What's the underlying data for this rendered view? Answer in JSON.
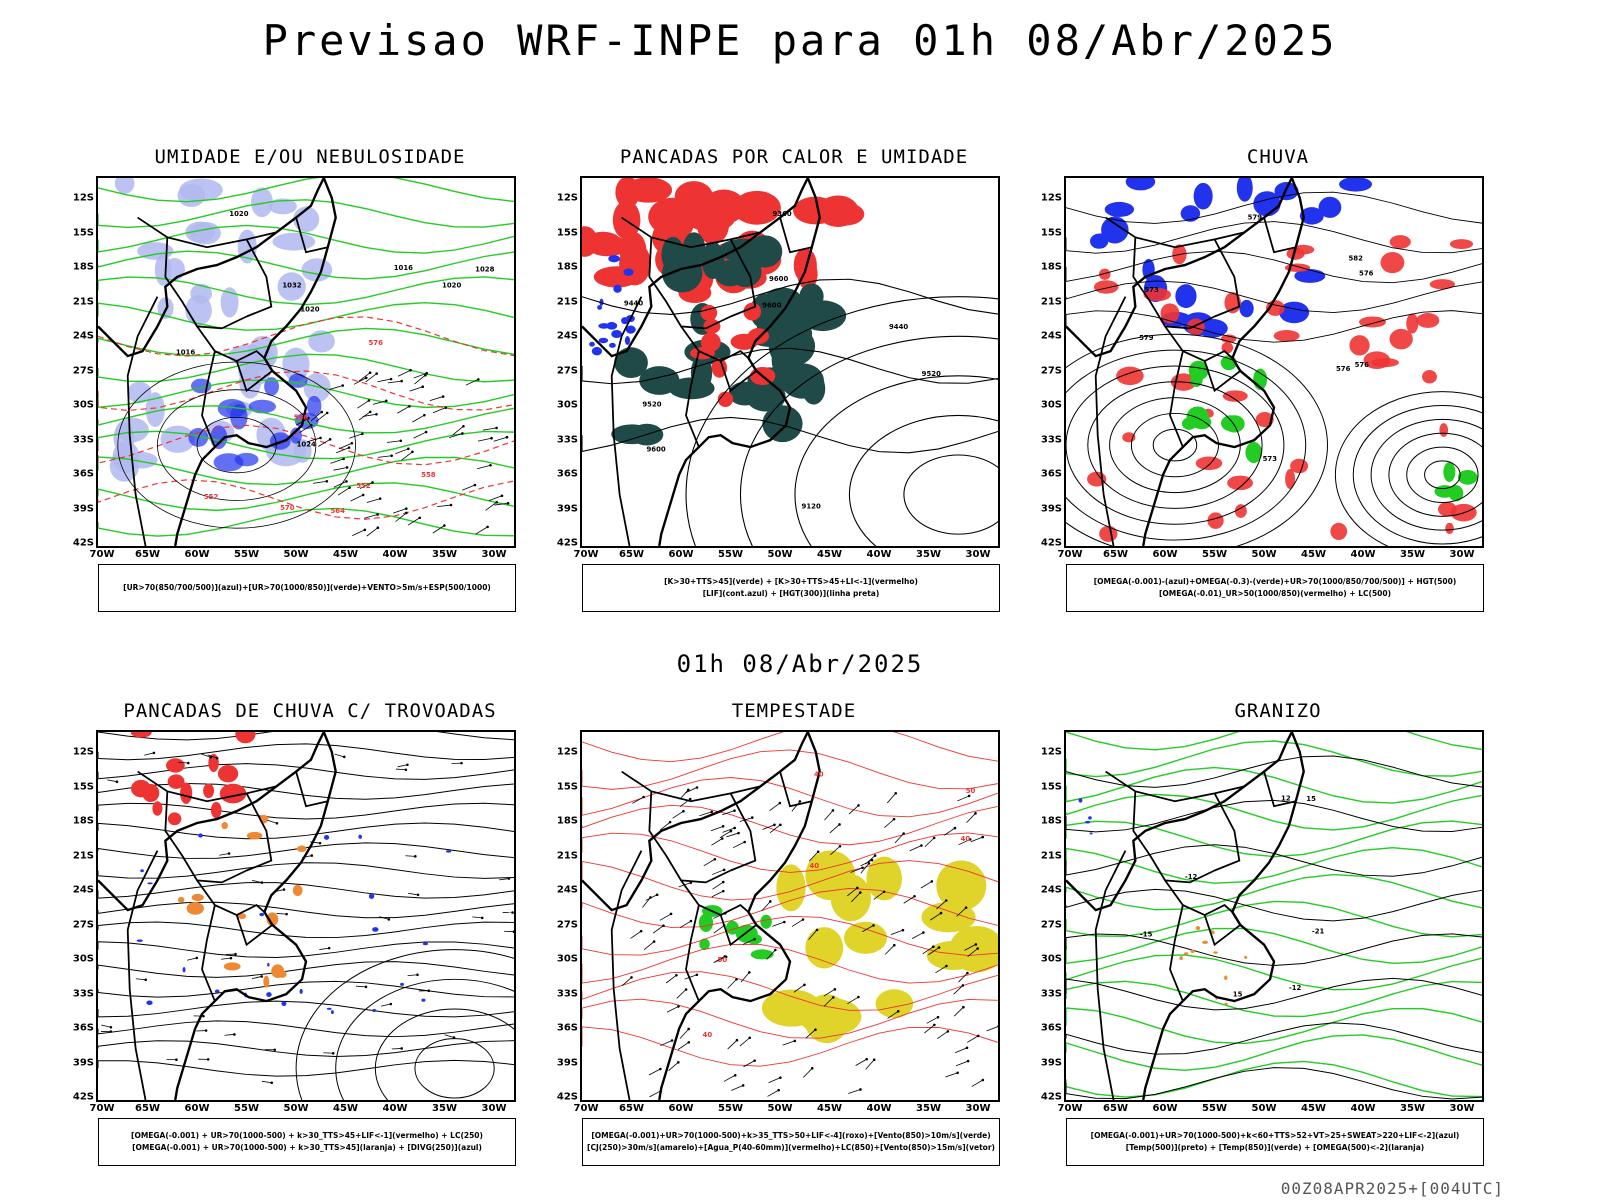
{
  "title": "Previsao WRF-INPE  para 01h 08/Abr/2025",
  "subtitle": "01h 08/Abr/2025",
  "footer": "00Z08APR2025+[004UTC]",
  "axes": {
    "lat_ticks": [
      "12S",
      "15S",
      "18S",
      "21S",
      "24S",
      "27S",
      "30S",
      "33S",
      "36S",
      "39S",
      "42S"
    ],
    "lon_ticks": [
      "70W",
      "65W",
      "60W",
      "55W",
      "50W",
      "45W",
      "40W",
      "35W",
      "30W"
    ]
  },
  "colors": {
    "blue": "#2233ee",
    "light_blue": "#b0b8f0",
    "green": "#22cc22",
    "red": "#ee3333",
    "dark_teal": "#1f4a48",
    "orange": "#ee8833",
    "yellow": "#e0d42a",
    "black": "#000000"
  },
  "panels": [
    {
      "id": "umidade",
      "title": "UMIDADE E/OU NEBULOSIDADE",
      "legend": [
        "[UR>70(850/700/500)](azul)+[UR>70(1000/850)](verde)+VENTO>5m/s+ESP(500/1000)"
      ],
      "contour_labels": [
        "1016",
        "1020",
        "1020",
        "1016",
        "1024",
        "1028",
        "1032",
        "1020",
        "570",
        "564",
        "558",
        "552",
        "546",
        "552",
        "576"
      ]
    },
    {
      "id": "pancadas",
      "title": "PANCADAS POR CALOR E UMIDADE",
      "legend": [
        "[K>30+TTS>45](verde) + [K>30+TTS>45+LI<-1](vermelho)",
        "[LIF](cont.azul) + [HGT(300)](linha preta)"
      ],
      "contour_labels": [
        "9600",
        "9520",
        "9600",
        "9600",
        "9520",
        "9440",
        "9360",
        "9440",
        "9120"
      ]
    },
    {
      "id": "chuva",
      "title": "CHUVA",
      "legend": [
        "[OMEGA(-0.001)-(azul)+OMEGA(-0.3)-(verde)+UR>70(1000/850/700/500)] + HGT(500)",
        "[OMEGA(-0.01)_UR>50(1000/850)(vermelho) + LC(500)"
      ],
      "contour_labels": [
        "582",
        "579",
        "576",
        "573",
        "576",
        "579",
        "573",
        "576"
      ]
    },
    {
      "id": "trovoadas",
      "title": "PANCADAS DE CHUVA C/ TROVOADAS",
      "legend": [
        "[OMEGA(-0.001) + UR>70(1000-500) + k>30_TTS>45+LIF<-1](vermelho) + LC(250)",
        "[OMEGA(-0.001) + UR>70(1000-500) + k>30_TTS>45](laranja) + [DIVG(250)](azul)"
      ],
      "contour_labels": []
    },
    {
      "id": "tempestade",
      "title": "TEMPESTADE",
      "legend": [
        "[OMEGA(-0.001)+UR>70(1000-500)+k>35_TTS>50+LIF<-4](roxo)+[Vento(850)>10m/s](verde)",
        "[CJ(250)>30m/s](amarelo)+[Agua_P(40-60mm)](vermelho)+LC(850)+[Vento(850)>15m/s](vetor)"
      ],
      "contour_labels": [
        "40",
        "40",
        "50",
        "40",
        "40",
        "50"
      ]
    },
    {
      "id": "granizo",
      "title": "GRANIZO",
      "legend": [
        "[OMEGA(-0.001)+UR>70(1000-500)+k<60+TTS>52+VT>25+SWEAT>220+LIF<-2](azul)",
        "[Temp(500)](preto) + [Temp(850)](verde) + [OMEGA(500)<-2](laranja)"
      ],
      "contour_labels": [
        "-12",
        "-15",
        "-21",
        "-12",
        "15",
        "15",
        "12"
      ]
    }
  ]
}
